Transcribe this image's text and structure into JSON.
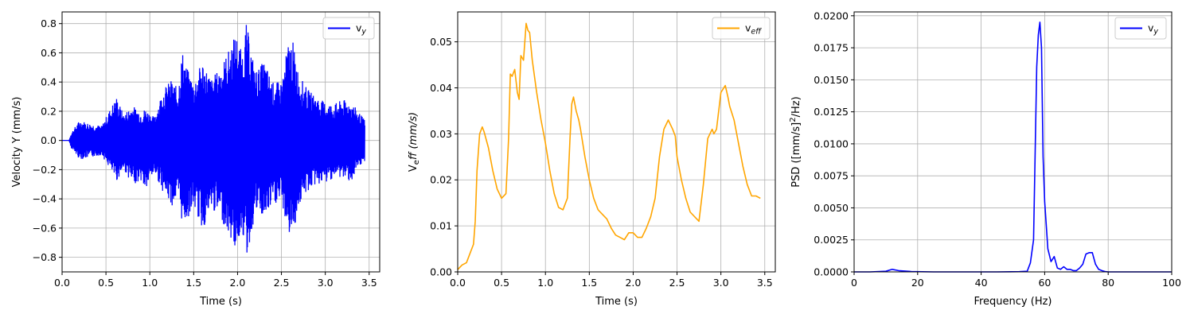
{
  "chart_data": [
    {
      "type": "line",
      "xlabel": "Time (s)",
      "ylabel": "Velocity Y (mm/s)",
      "xlim": [
        0,
        3.62
      ],
      "ylim": [
        -0.9,
        0.88
      ],
      "xticks": [
        0.0,
        0.5,
        1.0,
        1.5,
        2.0,
        2.5,
        3.0,
        3.5
      ],
      "xtick_labels": [
        "0.0",
        "0.5",
        "1.0",
        "1.5",
        "2.0",
        "2.5",
        "3.0",
        "3.5"
      ],
      "yticks": [
        -0.8,
        -0.6,
        -0.4,
        -0.2,
        0.0,
        0.2,
        0.4,
        0.6,
        0.8
      ],
      "ytick_labels": [
        "−0.8",
        "−0.6",
        "−0.4",
        "−0.2",
        "0.0",
        "0.2",
        "0.4",
        "0.6",
        "0.8"
      ],
      "grid": true,
      "legend_position": "top-right",
      "series": [
        {
          "name": "v_y",
          "legend_label": "v",
          "legend_sub": "y",
          "color": "#0000ff",
          "envelope": {
            "note_kind": "oscillating signal, peak amplitude vs time",
            "time": [
              0.0,
              0.08,
              0.1,
              0.2,
              0.3,
              0.45,
              0.55,
              0.62,
              0.7,
              0.8,
              0.9,
              0.95,
              1.05,
              1.15,
              1.25,
              1.32,
              1.37,
              1.42,
              1.5,
              1.6,
              1.7,
              1.8,
              1.9,
              1.98,
              2.05,
              2.1,
              2.15,
              2.2,
              2.25,
              2.3,
              2.4,
              2.5,
              2.58,
              2.63,
              2.7,
              2.8,
              2.9,
              3.0,
              3.1,
              3.2,
              3.3,
              3.45
            ],
            "max": [
              0.0,
              0.0,
              0.05,
              0.14,
              0.12,
              0.1,
              0.22,
              0.3,
              0.18,
              0.24,
              0.2,
              0.22,
              0.16,
              0.35,
              0.42,
              0.35,
              0.62,
              0.5,
              0.4,
              0.55,
              0.42,
              0.5,
              0.62,
              0.74,
              0.6,
              0.8,
              0.65,
              0.48,
              0.5,
              0.55,
              0.4,
              0.4,
              0.68,
              0.68,
              0.45,
              0.35,
              0.3,
              0.26,
              0.25,
              0.28,
              0.26,
              0.14
            ],
            "min": [
              0.0,
              0.0,
              -0.05,
              -0.13,
              -0.12,
              -0.1,
              -0.2,
              -0.28,
              -0.2,
              -0.3,
              -0.28,
              -0.35,
              -0.22,
              -0.35,
              -0.45,
              -0.4,
              -0.57,
              -0.55,
              -0.45,
              -0.62,
              -0.48,
              -0.52,
              -0.65,
              -0.76,
              -0.6,
              -0.82,
              -0.68,
              -0.5,
              -0.5,
              -0.55,
              -0.45,
              -0.42,
              -0.65,
              -0.65,
              -0.45,
              -0.35,
              -0.3,
              -0.3,
              -0.25,
              -0.26,
              -0.28,
              -0.14
            ]
          }
        }
      ]
    },
    {
      "type": "line",
      "xlabel": "Time (s)",
      "ylabel_parts": [
        "V",
        "e",
        "ff (mm/s)"
      ],
      "xlim": [
        0,
        3.62
      ],
      "ylim": [
        0.0,
        0.0565
      ],
      "xticks": [
        0.0,
        0.5,
        1.0,
        1.5,
        2.0,
        2.5,
        3.0,
        3.5
      ],
      "xtick_labels": [
        "0.0",
        "0.5",
        "1.0",
        "1.5",
        "2.0",
        "2.5",
        "3.0",
        "3.5"
      ],
      "yticks": [
        0.0,
        0.01,
        0.02,
        0.03,
        0.04,
        0.05
      ],
      "ytick_labels": [
        "0.00",
        "0.01",
        "0.02",
        "0.03",
        "0.04",
        "0.05"
      ],
      "grid": true,
      "legend_position": "top-right",
      "series": [
        {
          "name": "v_eff",
          "legend_label": "v",
          "legend_sub": "eff",
          "color": "#ffa500",
          "x": [
            0.0,
            0.05,
            0.1,
            0.15,
            0.18,
            0.2,
            0.22,
            0.25,
            0.28,
            0.3,
            0.35,
            0.4,
            0.45,
            0.5,
            0.55,
            0.58,
            0.6,
            0.62,
            0.65,
            0.68,
            0.7,
            0.72,
            0.75,
            0.78,
            0.8,
            0.82,
            0.85,
            0.9,
            0.95,
            1.0,
            1.05,
            1.1,
            1.15,
            1.2,
            1.25,
            1.28,
            1.3,
            1.32,
            1.35,
            1.38,
            1.4,
            1.45,
            1.5,
            1.55,
            1.6,
            1.65,
            1.7,
            1.75,
            1.8,
            1.85,
            1.9,
            1.95,
            2.0,
            2.05,
            2.1,
            2.15,
            2.2,
            2.25,
            2.3,
            2.35,
            2.4,
            2.45,
            2.48,
            2.5,
            2.55,
            2.6,
            2.65,
            2.7,
            2.75,
            2.8,
            2.85,
            2.9,
            2.92,
            2.95,
            3.0,
            3.05,
            3.08,
            3.1,
            3.15,
            3.2,
            3.25,
            3.3,
            3.35,
            3.4,
            3.45
          ],
          "y": [
            0.0005,
            0.0015,
            0.002,
            0.0045,
            0.006,
            0.011,
            0.022,
            0.03,
            0.0315,
            0.0305,
            0.027,
            0.022,
            0.018,
            0.016,
            0.017,
            0.029,
            0.043,
            0.0425,
            0.044,
            0.039,
            0.0375,
            0.047,
            0.046,
            0.054,
            0.0525,
            0.052,
            0.046,
            0.039,
            0.033,
            0.028,
            0.022,
            0.017,
            0.014,
            0.0135,
            0.016,
            0.029,
            0.0365,
            0.038,
            0.035,
            0.033,
            0.031,
            0.025,
            0.02,
            0.016,
            0.0135,
            0.0125,
            0.0115,
            0.0095,
            0.008,
            0.0075,
            0.007,
            0.0085,
            0.0085,
            0.0075,
            0.0075,
            0.0095,
            0.012,
            0.016,
            0.025,
            0.031,
            0.033,
            0.031,
            0.0295,
            0.025,
            0.02,
            0.016,
            0.013,
            0.012,
            0.011,
            0.019,
            0.029,
            0.031,
            0.03,
            0.031,
            0.039,
            0.0405,
            0.038,
            0.036,
            0.033,
            0.028,
            0.023,
            0.019,
            0.0165,
            0.0165,
            0.016
          ]
        }
      ]
    },
    {
      "type": "line",
      "xlabel": "Frequency (Hz)",
      "ylabel_parts": [
        "PSD ([mm/s]",
        "2",
        "/Hz)"
      ],
      "xlim": [
        0,
        100
      ],
      "ylim": [
        0.0,
        0.0203
      ],
      "xticks": [
        0,
        20,
        40,
        60,
        80,
        100
      ],
      "xtick_labels": [
        "0",
        "20",
        "40",
        "60",
        "80",
        "100"
      ],
      "yticks": [
        0.0,
        0.0025,
        0.005,
        0.0075,
        0.01,
        0.0125,
        0.015,
        0.0175,
        0.02
      ],
      "ytick_labels": [
        "0.0000",
        "0.0025",
        "0.0050",
        "0.0075",
        "0.0100",
        "0.0125",
        "0.0150",
        "0.0175",
        "0.0200"
      ],
      "grid": true,
      "legend_position": "top-right",
      "series": [
        {
          "name": "v_y",
          "legend_label": "v",
          "legend_sub": "y",
          "color": "#0000ff",
          "x": [
            0,
            5,
            10,
            12,
            14,
            18,
            25,
            35,
            45,
            52,
            54.5,
            55.5,
            56.5,
            57.5,
            58.0,
            58.5,
            59.0,
            59.5,
            60.0,
            61.0,
            62.0,
            63.0,
            64.0,
            65.0,
            66.0,
            67.0,
            68.0,
            69.0,
            70.0,
            71.0,
            72.0,
            73.0,
            74.0,
            75.0,
            76.0,
            77.0,
            78.0,
            79.0,
            80,
            85,
            90,
            100
          ],
          "y": [
            0.0,
            0.0,
            5e-05,
            0.0002,
            0.0001,
            3e-05,
            0.0,
            0.0,
            0.0,
            2e-05,
            5e-05,
            0.0007,
            0.0025,
            0.016,
            0.0185,
            0.0195,
            0.0175,
            0.009,
            0.0055,
            0.0018,
            0.0008,
            0.0012,
            0.0003,
            0.0002,
            0.0004,
            0.0002,
            0.0002,
            0.0001,
            0.0001,
            0.0003,
            0.0006,
            0.0014,
            0.0015,
            0.0015,
            0.0006,
            0.0002,
            0.0001,
            3e-05,
            0.0,
            0.0,
            0.0,
            0.0
          ]
        }
      ]
    }
  ]
}
